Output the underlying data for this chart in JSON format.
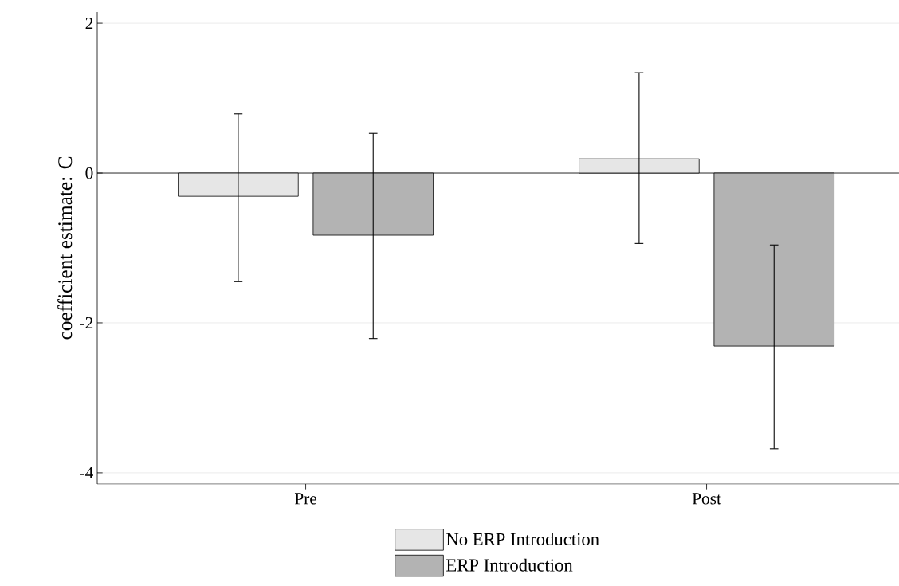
{
  "chart_data": {
    "type": "bar",
    "ylabel": "coefficient estimate: C",
    "categories": [
      "Pre",
      "Post"
    ],
    "series": [
      {
        "name": "No ERP Introduction",
        "color": "#e6e6e6",
        "values": [
          -0.31,
          0.19
        ],
        "errors": [
          [
            -1.45,
            0.79
          ],
          [
            -0.94,
            1.34
          ]
        ]
      },
      {
        "name": "ERP Introduction",
        "color": "#b3b3b3",
        "values": [
          -0.83,
          -2.31
        ],
        "errors": [
          [
            -2.21,
            0.53
          ],
          [
            -3.68,
            -0.96
          ]
        ]
      }
    ],
    "ylim": [
      -4.15,
      2.15
    ],
    "yticks": [
      -4,
      -2,
      0,
      2
    ],
    "grid": "y",
    "legend": "bottom"
  }
}
